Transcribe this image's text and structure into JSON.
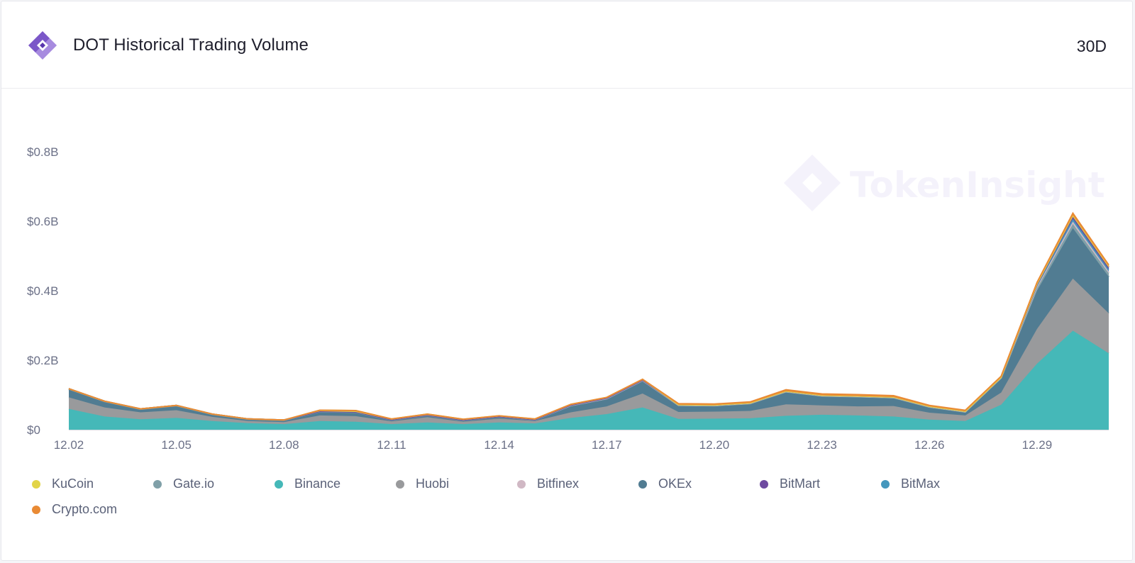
{
  "header": {
    "title": "DOT Historical Trading Volume",
    "range_label": "30D"
  },
  "watermark": {
    "text": "TokenInsight"
  },
  "chart_data": {
    "type": "area",
    "stacked": true,
    "title": "DOT Historical Trading Volume",
    "xlabel": "",
    "ylabel": "",
    "ylim": [
      0,
      0.8
    ],
    "y_ticks": [
      0,
      0.2,
      0.4,
      0.6,
      0.8
    ],
    "y_tick_labels": [
      "$0",
      "$0.2B",
      "$0.4B",
      "$0.6B",
      "$0.8B"
    ],
    "x_tick_labels": [
      "12.02",
      "12.05",
      "12.08",
      "12.11",
      "12.14",
      "12.17",
      "12.20",
      "12.23",
      "12.26",
      "12.29"
    ],
    "x_tick_indices": [
      0,
      3,
      6,
      9,
      12,
      15,
      18,
      21,
      24,
      27
    ],
    "categories": [
      "12.02",
      "12.03",
      "12.04",
      "12.05",
      "12.06",
      "12.07",
      "12.08",
      "12.09",
      "12.10",
      "12.11",
      "12.12",
      "12.13",
      "12.14",
      "12.15",
      "12.16",
      "12.17",
      "12.18",
      "12.19",
      "12.20",
      "12.21",
      "12.22",
      "12.23",
      "12.24",
      "12.25",
      "12.26",
      "12.27",
      "12.28",
      "12.29",
      "12.30",
      "12.31"
    ],
    "series": [
      {
        "name": "Binance",
        "color": "#45b8b8",
        "values": [
          0.06,
          0.038,
          0.03,
          0.034,
          0.025,
          0.019,
          0.016,
          0.025,
          0.023,
          0.016,
          0.021,
          0.016,
          0.021,
          0.018,
          0.034,
          0.045,
          0.064,
          0.031,
          0.032,
          0.033,
          0.04,
          0.043,
          0.041,
          0.038,
          0.029,
          0.025,
          0.072,
          0.19,
          0.285,
          0.22
        ]
      },
      {
        "name": "Huobi",
        "color": "#999a9c",
        "values": [
          0.033,
          0.026,
          0.02,
          0.022,
          0.012,
          0.006,
          0.006,
          0.016,
          0.016,
          0.008,
          0.015,
          0.007,
          0.011,
          0.007,
          0.016,
          0.022,
          0.04,
          0.02,
          0.02,
          0.021,
          0.033,
          0.027,
          0.026,
          0.03,
          0.02,
          0.016,
          0.035,
          0.1,
          0.15,
          0.115
        ]
      },
      {
        "name": "OKEx",
        "color": "#517c92",
        "values": [
          0.023,
          0.016,
          0.008,
          0.012,
          0.006,
          0.004,
          0.004,
          0.01,
          0.01,
          0.003,
          0.004,
          0.003,
          0.004,
          0.002,
          0.017,
          0.02,
          0.035,
          0.018,
          0.016,
          0.02,
          0.034,
          0.025,
          0.026,
          0.022,
          0.015,
          0.009,
          0.04,
          0.11,
          0.145,
          0.105
        ]
      },
      {
        "name": "Gate.io",
        "color": "#80a0a8",
        "values": [
          0.001,
          0.001,
          0.001,
          0.001,
          0.001,
          0.001,
          0.001,
          0.001,
          0.001,
          0.001,
          0.001,
          0.001,
          0.001,
          0.001,
          0.002,
          0.002,
          0.002,
          0.001,
          0.001,
          0.001,
          0.002,
          0.002,
          0.002,
          0.002,
          0.001,
          0.001,
          0.002,
          0.008,
          0.012,
          0.01
        ]
      },
      {
        "name": "Bitfinex",
        "color": "#d0b8c4",
        "values": [
          0.001,
          0.001,
          0.001,
          0.001,
          0.001,
          0.001,
          0.001,
          0.001,
          0.001,
          0.001,
          0.001,
          0.001,
          0.001,
          0.001,
          0.001,
          0.001,
          0.001,
          0.001,
          0.001,
          0.001,
          0.001,
          0.001,
          0.001,
          0.001,
          0.001,
          0.001,
          0.001,
          0.004,
          0.007,
          0.005
        ]
      },
      {
        "name": "BitMax",
        "color": "#4497bd",
        "values": [
          0.0,
          0.0,
          0.0,
          0.0,
          0.0,
          0.0,
          0.0,
          0.0,
          0.0,
          0.0,
          0.0,
          0.0,
          0.0,
          0.0,
          0.001,
          0.001,
          0.001,
          0.001,
          0.001,
          0.001,
          0.001,
          0.001,
          0.001,
          0.001,
          0.001,
          0.001,
          0.001,
          0.004,
          0.008,
          0.006
        ]
      },
      {
        "name": "BitMart",
        "color": "#6e4aa0",
        "values": [
          0.0,
          0.0,
          0.0,
          0.0,
          0.0,
          0.0,
          0.0,
          0.0,
          0.0,
          0.0,
          0.0,
          0.0,
          0.0,
          0.0,
          0.0,
          0.0,
          0.0,
          0.0,
          0.0,
          0.0,
          0.0,
          0.0,
          0.0,
          0.0,
          0.0,
          0.0,
          0.0,
          0.002,
          0.006,
          0.006
        ]
      },
      {
        "name": "KuCoin",
        "color": "#e2d448",
        "values": [
          0.0,
          0.0,
          0.0,
          0.0,
          0.0,
          0.0,
          0.0,
          0.003,
          0.004,
          0.002,
          0.003,
          0.002,
          0.002,
          0.002,
          0.002,
          0.002,
          0.002,
          0.0,
          0.0,
          0.0,
          0.0,
          0.0,
          0.0,
          0.0,
          0.0,
          0.0,
          0.0,
          0.002,
          0.004,
          0.003
        ]
      },
      {
        "name": "Crypto.com",
        "color": "#e98a34",
        "values": [
          0.0,
          0.0,
          0.0,
          0.0,
          0.0,
          0.0,
          0.0,
          0.0,
          0.0,
          0.0,
          0.0,
          0.0,
          0.0,
          0.0,
          0.0,
          0.0,
          0.0,
          0.003,
          0.003,
          0.003,
          0.004,
          0.004,
          0.004,
          0.004,
          0.003,
          0.003,
          0.003,
          0.004,
          0.006,
          0.004
        ]
      }
    ],
    "legend": {
      "position": "bottom",
      "items": [
        {
          "name": "KuCoin",
          "color": "#e2d448"
        },
        {
          "name": "Gate.io",
          "color": "#80a0a8"
        },
        {
          "name": "Binance",
          "color": "#45b8b8"
        },
        {
          "name": "Huobi",
          "color": "#999a9c"
        },
        {
          "name": "Bitfinex",
          "color": "#d0b8c4"
        },
        {
          "name": "OKEx",
          "color": "#517c92"
        },
        {
          "name": "BitMart",
          "color": "#6e4aa0"
        },
        {
          "name": "BitMax",
          "color": "#4497bd"
        },
        {
          "name": "Crypto.com",
          "color": "#e98a34"
        }
      ]
    }
  }
}
